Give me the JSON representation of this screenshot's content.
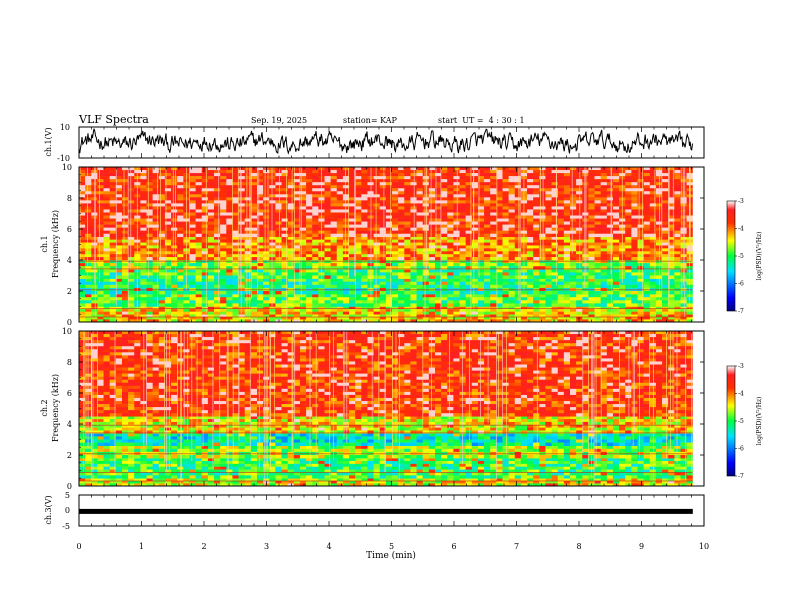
{
  "header": {
    "title": "VLF Spectra",
    "date": "Sep. 19, 2025",
    "station": "station= KAP",
    "start": "start  UT =  4 : 30 : 1"
  },
  "chart_data": [
    {
      "type": "line",
      "name": "ch1-waveform",
      "ylabel": "ch.1(V)",
      "ylim": [
        -10,
        10
      ],
      "yticks": [
        "10",
        "-10"
      ],
      "xlim": [
        0,
        10
      ],
      "data_end_min": 9.82,
      "color": "#000000"
    },
    {
      "type": "heatmap",
      "name": "ch1-spectrogram",
      "ylabel": "ch.1\nFrequency (kHz)",
      "ylabel_lines": [
        "ch.1",
        "Frequency  (kHz)"
      ],
      "ylim": [
        0,
        10
      ],
      "yticks": [
        "0",
        "2",
        "4",
        "6",
        "8",
        "10"
      ],
      "xlim": [
        0,
        10
      ],
      "colorbar": {
        "label": "log(PSD)(V²/Hz)",
        "range": [
          -7,
          -3
        ],
        "ticks": [
          "-3",
          "-4",
          "-5",
          "-6",
          "-7"
        ]
      },
      "band_levels": [
        {
          "f": [
            0,
            0.5
          ],
          "v": -4.3
        },
        {
          "f": [
            0.5,
            1.0
          ],
          "v": -4.4
        },
        {
          "f": [
            1.0,
            1.8
          ],
          "v": -4.9
        },
        {
          "f": [
            1.8,
            2.8
          ],
          "v": -5.1
        },
        {
          "f": [
            2.8,
            3.4
          ],
          "v": -5.0
        },
        {
          "f": [
            3.4,
            4.0
          ],
          "v": -4.8
        },
        {
          "f": [
            4.0,
            5.5
          ],
          "v": -4.1
        },
        {
          "f": [
            5.5,
            10.0
          ],
          "v": -3.6
        }
      ]
    },
    {
      "type": "heatmap",
      "name": "ch2-spectrogram",
      "ylabel": "ch.2\nFrequency (kHz)",
      "ylabel_lines": [
        "ch.2",
        "Frequency  (kHz)"
      ],
      "ylim": [
        0,
        10
      ],
      "yticks": [
        "0",
        "2",
        "4",
        "6",
        "8",
        "10"
      ],
      "xlim": [
        0,
        10
      ],
      "colorbar": {
        "label": "log(PSD)(V²/Hz)",
        "range": [
          -7,
          -3
        ],
        "ticks": [
          "-3",
          "-4",
          "-5",
          "-6",
          "-7"
        ]
      },
      "band_levels": [
        {
          "f": [
            0,
            0.5
          ],
          "v": -4.5
        },
        {
          "f": [
            0.5,
            1.8
          ],
          "v": -5.0
        },
        {
          "f": [
            1.8,
            2.6
          ],
          "v": -4.7
        },
        {
          "f": [
            2.6,
            3.4
          ],
          "v": -5.4
        },
        {
          "f": [
            3.4,
            4.5
          ],
          "v": -4.4
        },
        {
          "f": [
            4.5,
            10.0
          ],
          "v": -3.7
        }
      ]
    },
    {
      "type": "line",
      "name": "ch3-waveform",
      "ylabel": "ch.3(V)",
      "ylim": [
        -5,
        5
      ],
      "yticks": [
        "5",
        "0",
        "-5"
      ],
      "xlim": [
        0,
        10
      ],
      "data_end_min": 9.82,
      "level": -0.3,
      "color": "#000000"
    }
  ],
  "xaxis": {
    "label": "Time (min)",
    "ticks": [
      "0",
      "1",
      "2",
      "3",
      "4",
      "5",
      "6",
      "7",
      "8",
      "9",
      "10"
    ],
    "range": [
      0,
      10
    ]
  }
}
